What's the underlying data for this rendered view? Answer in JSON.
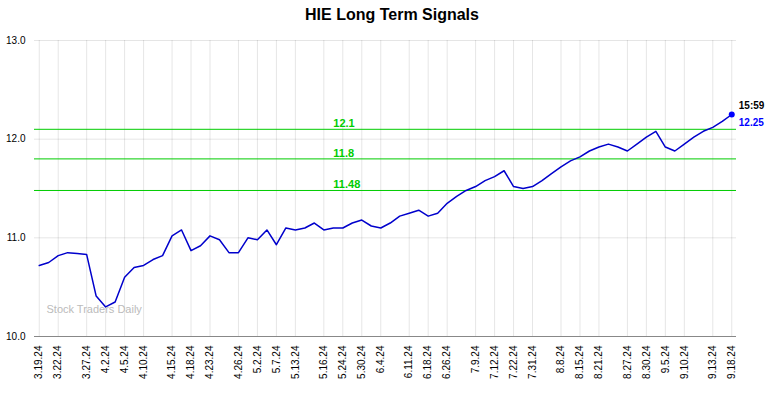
{
  "chart_data": {
    "type": "line",
    "title": "HIE Long Term Signals",
    "categories": [
      "3.19.24",
      null,
      "3.22.24",
      null,
      null,
      "3.27.24",
      null,
      "4.2.24",
      null,
      "4.5.24",
      null,
      "4.10.24",
      null,
      null,
      "4.15.24",
      null,
      "4.18.24",
      null,
      "4.23.24",
      null,
      null,
      "4.26.24",
      null,
      "5.2.24",
      null,
      "5.7.24",
      null,
      "5.13.24",
      null,
      null,
      "5.16.24",
      null,
      "5.24.24",
      null,
      "5.30.24",
      null,
      "6.4.24",
      null,
      null,
      "6.11.24",
      null,
      "6.18.24",
      null,
      "6.26.24",
      null,
      null,
      "7.9.24",
      null,
      "7.12.24",
      null,
      "7.22.24",
      null,
      "7.31.24",
      null,
      null,
      "8.8.24",
      null,
      "8.15.24",
      null,
      "8.21.24",
      null,
      null,
      "8.27.24",
      null,
      "8.30.24",
      null,
      "9.5.24",
      null,
      "9.10.24",
      null,
      null,
      "9.13.24",
      null,
      "9.18.24"
    ],
    "values": [
      10.72,
      10.75,
      10.82,
      10.85,
      10.84,
      10.83,
      10.41,
      10.3,
      10.35,
      10.6,
      10.7,
      10.72,
      10.78,
      10.82,
      11.02,
      11.08,
      10.87,
      10.92,
      11.02,
      10.98,
      10.85,
      10.85,
      11.0,
      10.98,
      11.08,
      10.93,
      11.1,
      11.08,
      11.1,
      11.15,
      11.08,
      11.1,
      11.1,
      11.15,
      11.18,
      11.12,
      11.1,
      11.15,
      11.22,
      11.25,
      11.28,
      11.22,
      11.25,
      11.35,
      11.42,
      11.48,
      11.52,
      11.58,
      11.62,
      11.68,
      11.52,
      11.5,
      11.52,
      11.58,
      11.65,
      11.72,
      11.78,
      11.82,
      11.88,
      11.92,
      11.95,
      11.92,
      11.88,
      11.95,
      12.02,
      12.08,
      11.92,
      11.88,
      11.95,
      12.02,
      12.08,
      12.12,
      12.18,
      12.25
    ],
    "color": "#0000cc",
    "ylim": [
      10,
      13
    ],
    "yticks": [
      10,
      11,
      12,
      13
    ],
    "grid": true,
    "horizontal_lines": [
      {
        "y": 12.1,
        "label": "12.1",
        "color": "#00cc00"
      },
      {
        "y": 11.8,
        "label": "11.8",
        "color": "#00cc00"
      },
      {
        "y": 11.48,
        "label": "11.48",
        "color": "#00cc00"
      }
    ],
    "last_point": {
      "value": 12.25,
      "color": "#0000ff",
      "time_label": "15:59",
      "value_label": "12.25"
    },
    "watermark": {
      "text": "Stock Traders Daily",
      "color": "#bbbbbb"
    }
  }
}
